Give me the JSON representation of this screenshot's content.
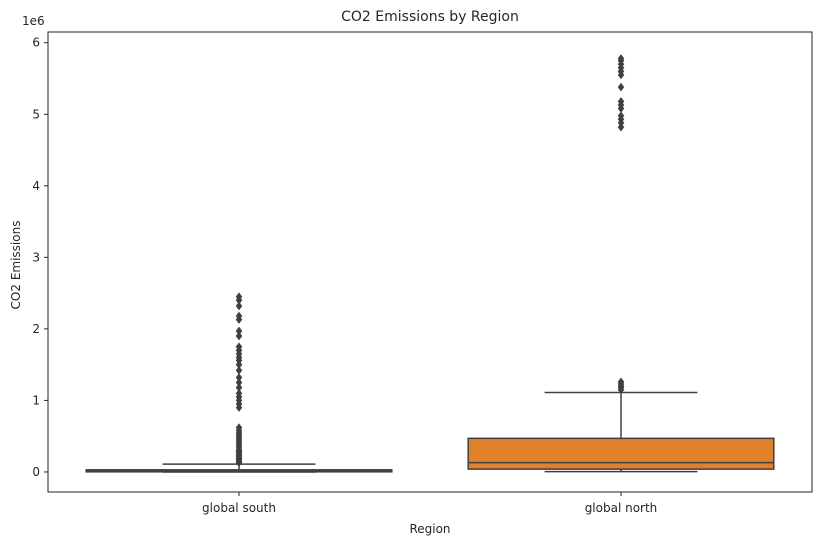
{
  "chart_data": {
    "type": "box",
    "title": "CO2 Emissions by Region",
    "xlabel": "Region",
    "ylabel": "CO2 Emissions",
    "y_offset_label": "1e6",
    "y_scale": 1000000,
    "ylim": [
      -280000,
      6150000
    ],
    "yticks": [
      0,
      1000000,
      2000000,
      3000000,
      4000000,
      5000000,
      6000000
    ],
    "ytick_labels": [
      "0",
      "1",
      "2",
      "3",
      "4",
      "5",
      "6"
    ],
    "categories": [
      "global south",
      "global north"
    ],
    "colors": {
      "global south": "#3274a1",
      "global north": "#e1812c",
      "line": "#3f3f3f"
    },
    "boxes": [
      {
        "category": "global south",
        "whislo": 0,
        "q1": 2000,
        "median": 8000,
        "q3": 30000,
        "whishi": 110000,
        "fliers": [
          130000,
          150000,
          170000,
          190000,
          210000,
          230000,
          250000,
          270000,
          290000,
          310000,
          340000,
          370000,
          400000,
          430000,
          460000,
          490000,
          520000,
          550000,
          580000,
          620000,
          900000,
          950000,
          1000000,
          1050000,
          1100000,
          1180000,
          1250000,
          1320000,
          1420000,
          1500000,
          1560000,
          1600000,
          1650000,
          1700000,
          1750000,
          1900000,
          1970000,
          2130000,
          2180000,
          2320000,
          2400000,
          2450000
        ]
      },
      {
        "category": "global north",
        "whislo": 5000,
        "q1": 40000,
        "median": 130000,
        "q3": 470000,
        "whishi": 1110000,
        "fliers": [
          1150000,
          1180000,
          1200000,
          1230000,
          1260000,
          4820000,
          4880000,
          4930000,
          4980000,
          5080000,
          5130000,
          5180000,
          5380000,
          5550000,
          5600000,
          5650000,
          5700000,
          5750000,
          5780000
        ]
      }
    ]
  }
}
